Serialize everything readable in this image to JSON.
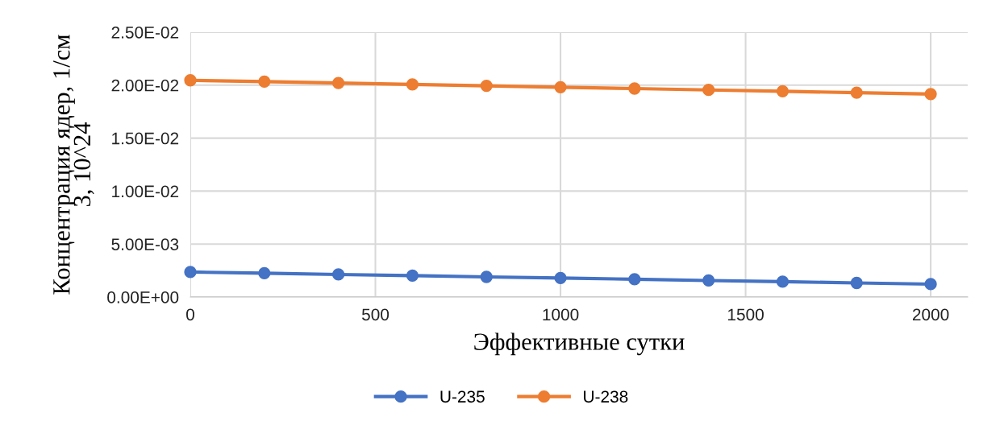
{
  "chart_data": {
    "type": "line",
    "xlabel": "Эффективные сутки",
    "ylabel": "Концентрация ядер, 1/см\n3, 10^24",
    "x": [
      0,
      200,
      400,
      600,
      800,
      1000,
      1200,
      1400,
      1600,
      1800,
      2000
    ],
    "series": [
      {
        "name": "U-235",
        "color": "#4472c4",
        "values": [
          0.00236,
          0.00225,
          0.00213,
          0.00202,
          0.0019,
          0.00179,
          0.00168,
          0.00156,
          0.00145,
          0.00133,
          0.00122
        ]
      },
      {
        "name": "U-238",
        "color": "#ed7d31",
        "values": [
          0.02046,
          0.02033,
          0.0202,
          0.02007,
          0.01994,
          0.01981,
          0.01968,
          0.01955,
          0.01942,
          0.01929,
          0.01916
        ]
      }
    ],
    "xlim": [
      0,
      2100
    ],
    "xticks": [
      0,
      500,
      1000,
      1500,
      2000
    ],
    "ylim": [
      0,
      0.025
    ],
    "yticks": [
      {
        "value": 0,
        "label": "0.00E+00"
      },
      {
        "value": 0.005,
        "label": "5.00E-03"
      },
      {
        "value": 0.01,
        "label": "1.00E-02"
      },
      {
        "value": 0.015,
        "label": "1.50E-02"
      },
      {
        "value": 0.02,
        "label": "2.00E-02"
      },
      {
        "value": 0.025,
        "label": "2.50E-02"
      }
    ],
    "grid": true,
    "legend": "bottom",
    "marker": "circle",
    "line_style": "solid"
  }
}
